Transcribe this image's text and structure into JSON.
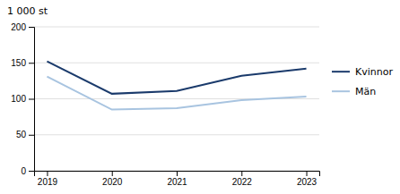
{
  "chart_data": {
    "type": "line",
    "ylabel": "1 000 st",
    "x": [
      2019,
      2020,
      2021,
      2022,
      2023
    ],
    "xlim": [
      2018.8,
      2023.2
    ],
    "xticks": [
      2019,
      2020,
      2021,
      2022,
      2023
    ],
    "ylim": [
      0,
      200
    ],
    "yticks": [
      0,
      50,
      100,
      150,
      200
    ],
    "grid": true,
    "legend": "right",
    "series": [
      {
        "name": "Kvinnor",
        "color": "#1a3a6b",
        "values": [
          152,
          107,
          111,
          132,
          142
        ]
      },
      {
        "name": "Män",
        "color": "#a8c4e0",
        "values": [
          131,
          85,
          87,
          98,
          103
        ]
      }
    ]
  }
}
